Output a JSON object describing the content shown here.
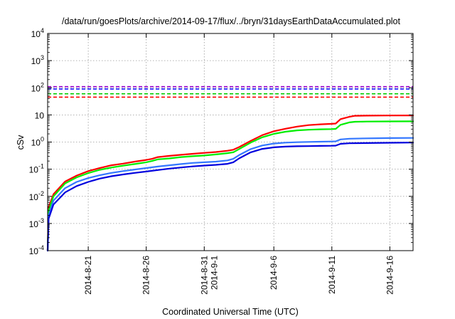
{
  "chart_data": {
    "type": "line",
    "title": "/data/run/goesPlots/archive/2014-09-17/flux/../bryn/31daysEarthDataAccumulated.plot",
    "xlabel": "Coordinated Universal Time (UTC)",
    "ylabel": "cSv",
    "y_scale": "log",
    "ylim": [
      0.0001,
      10000
    ],
    "xlim": [
      "2014-08-17T12:00",
      "2014-09-18T00:00"
    ],
    "y_ticks": [
      {
        "value": 0.0001,
        "base": "10",
        "exp": "-4"
      },
      {
        "value": 0.001,
        "base": "10",
        "exp": "-3"
      },
      {
        "value": 0.01,
        "base": "10",
        "exp": "-2"
      },
      {
        "value": 0.1,
        "base": "10",
        "exp": "-1"
      },
      {
        "value": 1,
        "base": "10",
        "exp": "0"
      },
      {
        "value": 10,
        "base": "10",
        "exp": ""
      },
      {
        "value": 100,
        "base": "10",
        "exp": "2"
      },
      {
        "value": 1000,
        "base": "10",
        "exp": "3"
      },
      {
        "value": 10000,
        "base": "10",
        "exp": "4"
      }
    ],
    "x_ticks": [
      {
        "date": "2014-08-21",
        "label": "2014-8-21"
      },
      {
        "date": "2014-08-26",
        "label": "2014-8-26"
      },
      {
        "date": "2014-08-31",
        "label": "2014-8-31",
        "label2": "2014-9-1"
      },
      {
        "date": "2014-09-06",
        "label": "2014-9-6"
      },
      {
        "date": "2014-09-11",
        "label": "2014-9-11"
      },
      {
        "date": "2014-09-16",
        "label": "2014-9-16"
      }
    ],
    "grid": true,
    "thresholds": [
      {
        "value": 110,
        "color": "#9900cc"
      },
      {
        "value": 90,
        "color": "#0000ff"
      },
      {
        "value": 60,
        "color": "#00cc00"
      },
      {
        "value": 45,
        "color": "#ff0000"
      }
    ],
    "series": [
      {
        "color": "#ff0000",
        "points": [
          [
            "2014-08-17T12:00",
            0.0001
          ],
          [
            "2014-08-17T14:00",
            0.004
          ],
          [
            "2014-08-18T00:00",
            0.012
          ],
          [
            "2014-08-19T00:00",
            0.035
          ],
          [
            "2014-08-20T00:00",
            0.058
          ],
          [
            "2014-08-21T00:00",
            0.085
          ],
          [
            "2014-08-22T00:00",
            0.11
          ],
          [
            "2014-08-23T00:00",
            0.14
          ],
          [
            "2014-08-24T00:00",
            0.16
          ],
          [
            "2014-08-25T00:00",
            0.19
          ],
          [
            "2014-08-26T00:00",
            0.22
          ],
          [
            "2014-08-26T12:00",
            0.24
          ],
          [
            "2014-08-27T00:00",
            0.28
          ],
          [
            "2014-08-28T00:00",
            0.31
          ],
          [
            "2014-08-29T00:00",
            0.34
          ],
          [
            "2014-08-30T00:00",
            0.37
          ],
          [
            "2014-08-31T00:00",
            0.4
          ],
          [
            "2014-09-01T00:00",
            0.43
          ],
          [
            "2014-09-02T00:00",
            0.48
          ],
          [
            "2014-09-02T12:00",
            0.52
          ],
          [
            "2014-09-03T00:00",
            0.65
          ],
          [
            "2014-09-04T00:00",
            1.1
          ],
          [
            "2014-09-05T00:00",
            1.8
          ],
          [
            "2014-09-06T00:00",
            2.5
          ],
          [
            "2014-09-07T00:00",
            3.1
          ],
          [
            "2014-09-08T00:00",
            3.7
          ],
          [
            "2014-09-09T00:00",
            4.2
          ],
          [
            "2014-09-10T00:00",
            4.5
          ],
          [
            "2014-09-11T00:00",
            4.7
          ],
          [
            "2014-09-11T08:00",
            4.8
          ],
          [
            "2014-09-11T18:00",
            7.0
          ],
          [
            "2014-09-12T12:00",
            8.5
          ],
          [
            "2014-09-13T00:00",
            9.3
          ],
          [
            "2014-09-14T00:00",
            9.4
          ],
          [
            "2014-09-16T00:00",
            9.5
          ],
          [
            "2014-09-18T00:00",
            9.6
          ]
        ]
      },
      {
        "color": "#00ee00",
        "points": [
          [
            "2014-08-17T12:00",
            0.0001
          ],
          [
            "2014-08-17T14:00",
            0.003
          ],
          [
            "2014-08-18T00:00",
            0.01
          ],
          [
            "2014-08-19T00:00",
            0.03
          ],
          [
            "2014-08-20T00:00",
            0.05
          ],
          [
            "2014-08-21T00:00",
            0.072
          ],
          [
            "2014-08-22T00:00",
            0.095
          ],
          [
            "2014-08-23T00:00",
            0.115
          ],
          [
            "2014-08-24T00:00",
            0.135
          ],
          [
            "2014-08-25T00:00",
            0.155
          ],
          [
            "2014-08-26T00:00",
            0.18
          ],
          [
            "2014-08-26T12:00",
            0.2
          ],
          [
            "2014-08-27T00:00",
            0.23
          ],
          [
            "2014-08-28T00:00",
            0.25
          ],
          [
            "2014-08-29T00:00",
            0.28
          ],
          [
            "2014-08-30T00:00",
            0.3
          ],
          [
            "2014-08-31T00:00",
            0.32
          ],
          [
            "2014-09-01T00:00",
            0.35
          ],
          [
            "2014-09-02T00:00",
            0.39
          ],
          [
            "2014-09-02T12:00",
            0.42
          ],
          [
            "2014-09-03T00:00",
            0.55
          ],
          [
            "2014-09-04T00:00",
            0.95
          ],
          [
            "2014-09-05T00:00",
            1.5
          ],
          [
            "2014-09-06T00:00",
            2.0
          ],
          [
            "2014-09-07T00:00",
            2.4
          ],
          [
            "2014-09-08T00:00",
            2.7
          ],
          [
            "2014-09-09T00:00",
            2.85
          ],
          [
            "2014-09-10T00:00",
            2.95
          ],
          [
            "2014-09-11T00:00",
            3.0
          ],
          [
            "2014-09-11T08:00",
            3.05
          ],
          [
            "2014-09-11T18:00",
            4.3
          ],
          [
            "2014-09-12T12:00",
            5.3
          ],
          [
            "2014-09-13T00:00",
            5.6
          ],
          [
            "2014-09-14T00:00",
            5.7
          ],
          [
            "2014-09-16T00:00",
            5.75
          ],
          [
            "2014-09-18T00:00",
            5.8
          ]
        ]
      },
      {
        "color": "#3377ff",
        "points": [
          [
            "2014-08-17T12:00",
            0.0001
          ],
          [
            "2014-08-17T14:00",
            0.002
          ],
          [
            "2014-08-18T00:00",
            0.007
          ],
          [
            "2014-08-19T00:00",
            0.02
          ],
          [
            "2014-08-20T00:00",
            0.034
          ],
          [
            "2014-08-21T00:00",
            0.047
          ],
          [
            "2014-08-22T00:00",
            0.06
          ],
          [
            "2014-08-23T00:00",
            0.073
          ],
          [
            "2014-08-24T00:00",
            0.085
          ],
          [
            "2014-08-25T00:00",
            0.097
          ],
          [
            "2014-08-26T00:00",
            0.11
          ],
          [
            "2014-08-27T00:00",
            0.125
          ],
          [
            "2014-08-28T00:00",
            0.14
          ],
          [
            "2014-08-29T00:00",
            0.155
          ],
          [
            "2014-08-30T00:00",
            0.17
          ],
          [
            "2014-08-31T00:00",
            0.18
          ],
          [
            "2014-09-01T00:00",
            0.19
          ],
          [
            "2014-09-02T00:00",
            0.21
          ],
          [
            "2014-09-02T12:00",
            0.24
          ],
          [
            "2014-09-03T00:00",
            0.33
          ],
          [
            "2014-09-04T00:00",
            0.55
          ],
          [
            "2014-09-05T00:00",
            0.75
          ],
          [
            "2014-09-06T00:00",
            0.88
          ],
          [
            "2014-09-07T00:00",
            0.95
          ],
          [
            "2014-09-08T00:00",
            0.99
          ],
          [
            "2014-09-09T00:00",
            1.01
          ],
          [
            "2014-09-10T00:00",
            1.03
          ],
          [
            "2014-09-11T00:00",
            1.05
          ],
          [
            "2014-09-11T08:00",
            1.06
          ],
          [
            "2014-09-11T18:00",
            1.25
          ],
          [
            "2014-09-12T12:00",
            1.33
          ],
          [
            "2014-09-14T00:00",
            1.37
          ],
          [
            "2014-09-16T00:00",
            1.4
          ],
          [
            "2014-09-18T00:00",
            1.42
          ]
        ]
      },
      {
        "color": "#0000dd",
        "points": [
          [
            "2014-08-17T12:00",
            0.0001
          ],
          [
            "2014-08-17T14:00",
            0.0015
          ],
          [
            "2014-08-18T00:00",
            0.005
          ],
          [
            "2014-08-19T00:00",
            0.014
          ],
          [
            "2014-08-20T00:00",
            0.024
          ],
          [
            "2014-08-21T00:00",
            0.034
          ],
          [
            "2014-08-22T00:00",
            0.045
          ],
          [
            "2014-08-23T00:00",
            0.055
          ],
          [
            "2014-08-24T00:00",
            0.064
          ],
          [
            "2014-08-25T00:00",
            0.073
          ],
          [
            "2014-08-26T00:00",
            0.082
          ],
          [
            "2014-08-27T00:00",
            0.093
          ],
          [
            "2014-08-28T00:00",
            0.105
          ],
          [
            "2014-08-29T00:00",
            0.116
          ],
          [
            "2014-08-30T00:00",
            0.127
          ],
          [
            "2014-08-31T00:00",
            0.136
          ],
          [
            "2014-09-01T00:00",
            0.145
          ],
          [
            "2014-09-02T00:00",
            0.158
          ],
          [
            "2014-09-02T12:00",
            0.18
          ],
          [
            "2014-09-03T00:00",
            0.25
          ],
          [
            "2014-09-04T00:00",
            0.42
          ],
          [
            "2014-09-05T00:00",
            0.56
          ],
          [
            "2014-09-06T00:00",
            0.64
          ],
          [
            "2014-09-07T00:00",
            0.68
          ],
          [
            "2014-09-08T00:00",
            0.7
          ],
          [
            "2014-09-09T00:00",
            0.71
          ],
          [
            "2014-09-10T00:00",
            0.72
          ],
          [
            "2014-09-11T00:00",
            0.73
          ],
          [
            "2014-09-11T08:00",
            0.74
          ],
          [
            "2014-09-11T18:00",
            0.86
          ],
          [
            "2014-09-12T12:00",
            0.9
          ],
          [
            "2014-09-14T00:00",
            0.92
          ],
          [
            "2014-09-16T00:00",
            0.94
          ],
          [
            "2014-09-18T00:00",
            0.96
          ]
        ]
      }
    ]
  }
}
